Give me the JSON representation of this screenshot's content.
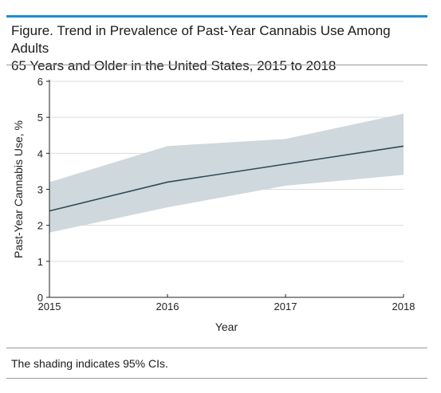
{
  "figure": {
    "title_line1": "Figure. Trend in Prevalence of Past-Year Cannabis Use Among Adults",
    "title_line2": "65 Years and Older in the United States, 2015 to 2018",
    "footnote": "The shading indicates 95% CIs."
  },
  "colors": {
    "accent_rule": "#1a8fd1",
    "line": "#2f4b55",
    "band": "#cfd8dc",
    "grid": "#dcdcdc",
    "axis": "#222222"
  },
  "chart_data": {
    "type": "line",
    "title": "",
    "xlabel": "Year",
    "ylabel": "Past-Year Cannabis Use, %",
    "x": [
      2015,
      2016,
      2017,
      2018
    ],
    "x_tick_labels": [
      "2015",
      "2016",
      "2017",
      "2018"
    ],
    "y_ticks": [
      0,
      1,
      2,
      3,
      4,
      5,
      6
    ],
    "y_tick_labels": [
      "0",
      "1",
      "2",
      "3",
      "4",
      "5",
      "6"
    ],
    "xlim": [
      2015,
      2018
    ],
    "ylim": [
      0,
      6
    ],
    "grid": "horizontal",
    "series": [
      {
        "values": [
          2.4,
          3.2,
          3.7,
          4.2
        ],
        "ci_lower": [
          1.8,
          2.5,
          3.1,
          3.4
        ],
        "ci_upper": [
          3.2,
          4.2,
          4.4,
          5.1
        ]
      }
    ]
  }
}
